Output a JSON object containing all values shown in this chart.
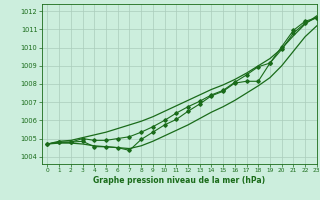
{
  "bg_color": "#cceedd",
  "grid_color": "#aaccbb",
  "line_color": "#1a6b1a",
  "marker_color": "#1a6b1a",
  "xlabel": "Graphe pression niveau de la mer (hPa)",
  "xlim": [
    -0.5,
    23
  ],
  "ylim": [
    1003.6,
    1012.4
  ],
  "xticks": [
    0,
    1,
    2,
    3,
    4,
    5,
    6,
    7,
    8,
    9,
    10,
    11,
    12,
    13,
    14,
    15,
    16,
    17,
    18,
    19,
    20,
    21,
    22,
    23
  ],
  "yticks": [
    1004,
    1005,
    1006,
    1007,
    1008,
    1009,
    1010,
    1011,
    1012
  ],
  "smooth_upper": [
    1004.7,
    1004.85,
    1004.9,
    1005.05,
    1005.2,
    1005.35,
    1005.55,
    1005.75,
    1005.95,
    1006.2,
    1006.5,
    1006.8,
    1007.1,
    1007.4,
    1007.7,
    1007.95,
    1008.25,
    1008.6,
    1009.0,
    1009.4,
    1009.95,
    1010.65,
    1011.3,
    1011.75
  ],
  "smooth_lower": [
    1004.7,
    1004.75,
    1004.75,
    1004.7,
    1004.6,
    1004.55,
    1004.5,
    1004.45,
    1004.6,
    1004.85,
    1005.15,
    1005.45,
    1005.75,
    1006.1,
    1006.45,
    1006.75,
    1007.1,
    1007.5,
    1007.9,
    1008.35,
    1009.0,
    1009.8,
    1010.6,
    1011.2
  ],
  "markers_upper": [
    1004.7,
    1004.8,
    1004.8,
    1005.0,
    1004.9,
    1004.9,
    1005.0,
    1005.1,
    1005.35,
    1005.65,
    1006.0,
    1006.4,
    1006.75,
    1007.05,
    1007.4,
    1007.65,
    1008.1,
    1008.5,
    1008.95,
    1009.15,
    1009.9,
    1010.8,
    1011.35,
    1011.65
  ],
  "markers_lower": [
    1004.7,
    1004.8,
    1004.8,
    1004.85,
    1004.55,
    1004.55,
    1004.5,
    1004.35,
    1004.95,
    1005.35,
    1005.75,
    1006.05,
    1006.5,
    1006.9,
    1007.35,
    1007.6,
    1008.05,
    1008.15,
    1008.15,
    1009.15,
    1010.05,
    1010.95,
    1011.45,
    1011.65
  ]
}
